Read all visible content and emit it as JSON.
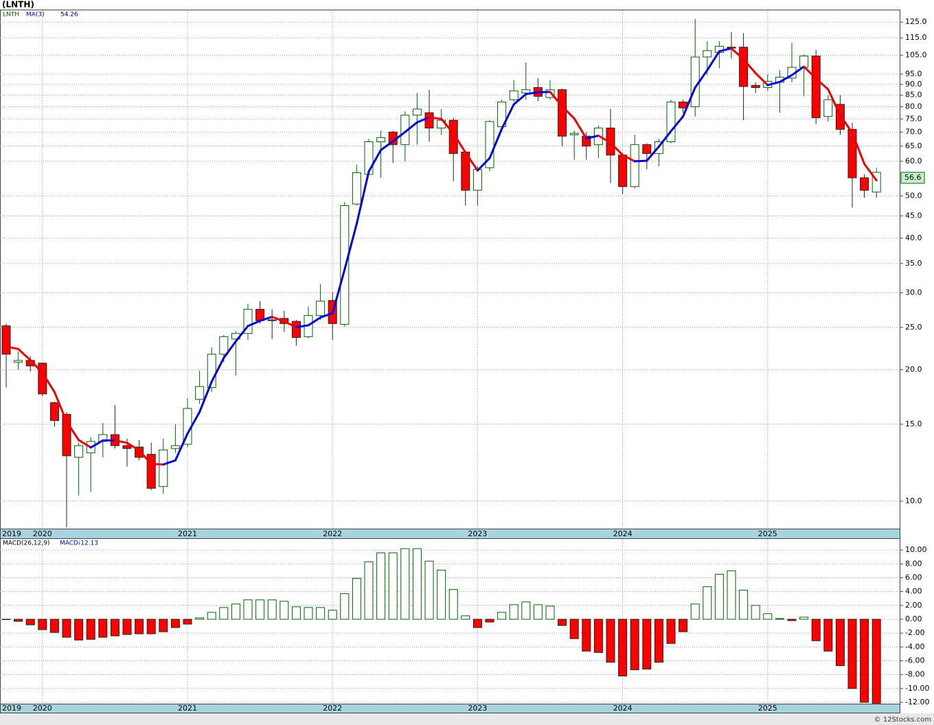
{
  "chart_data": [
    {
      "type": "candlestick",
      "title": "(LNTH)",
      "legend": [
        "LNTH",
        "MA(3)"
      ],
      "log_scale": true,
      "grid": true,
      "categories": [
        "2019",
        null,
        null,
        "2020",
        null,
        null,
        null,
        null,
        null,
        null,
        null,
        null,
        null,
        null,
        null,
        "2021",
        null,
        null,
        null,
        null,
        null,
        null,
        null,
        null,
        null,
        null,
        null,
        "2022",
        null,
        null,
        null,
        null,
        null,
        null,
        null,
        null,
        null,
        null,
        null,
        "2023",
        null,
        null,
        null,
        null,
        null,
        null,
        null,
        null,
        null,
        null,
        null,
        "2024",
        null,
        null,
        null,
        null,
        null,
        null,
        null,
        null,
        null,
        null,
        null,
        "2025",
        null,
        null,
        null,
        null,
        null,
        null,
        null,
        null,
        null
      ],
      "open": [
        25.2,
        20.8,
        21.0,
        20.7,
        16.8,
        15.8,
        12.6,
        12.9,
        13.7,
        14.2,
        13.4,
        13.3,
        12.8,
        10.8,
        13.2,
        13.5,
        17.1,
        18.2,
        21.7,
        23.5,
        24.2,
        27.5,
        26,
        26.2,
        25.8,
        23.8,
        26.6,
        28.8,
        25.4,
        47.9,
        56,
        66.5,
        70,
        65.5,
        76.5,
        77.5,
        71.5,
        74.5,
        63,
        51.5,
        58,
        72,
        83,
        86,
        88.5,
        84,
        87.5,
        69,
        68.5,
        65.5,
        71.5,
        62,
        52.5,
        65.5,
        62.5,
        66.5,
        82,
        80,
        104,
        106.5,
        109.5,
        109.5,
        89.5,
        88.5,
        91,
        93,
        98.5,
        104.5,
        76,
        81,
        71,
        55,
        51
      ],
      "high": [
        25.5,
        22,
        21.5,
        20.8,
        16.9,
        16,
        13.6,
        14,
        15.1,
        16.6,
        13.9,
        13.8,
        13.6,
        13.9,
        15,
        17.2,
        19.9,
        22.5,
        24,
        24.5,
        28.3,
        28.7,
        27.5,
        27.3,
        26,
        27.9,
        31.4,
        30.1,
        48.4,
        59,
        67.5,
        70.5,
        70.4,
        78,
        86,
        87.5,
        79,
        75.5,
        63.5,
        58.5,
        74.5,
        83,
        92,
        101,
        93,
        92,
        88,
        70.5,
        70,
        72.5,
        79,
        62.5,
        69,
        66,
        67.5,
        83,
        83,
        127,
        113,
        113,
        118.5,
        118,
        91,
        95,
        97,
        112,
        105.5,
        108,
        85,
        85,
        73.5,
        56,
        58
      ],
      "low": [
        18.2,
        20,
        19.8,
        17.4,
        14.8,
        8.7,
        10.3,
        10.5,
        12.6,
        13.2,
        12.0,
        12.4,
        10.6,
        10.4,
        12.9,
        13.3,
        16.7,
        17.8,
        20.8,
        19.4,
        23.4,
        25.5,
        23.5,
        24.4,
        22.7,
        23.6,
        26,
        23.4,
        25.1,
        47.5,
        56,
        55,
        59.5,
        60,
        65.5,
        66.5,
        69,
        54,
        47.5,
        47.5,
        57,
        70,
        82,
        83,
        82.5,
        83,
        65,
        60.5,
        60.5,
        61,
        53.5,
        50.5,
        52,
        57.5,
        58.5,
        66,
        77.5,
        76,
        94.5,
        98,
        103,
        74.5,
        86,
        87,
        77.5,
        91,
        84.5,
        73,
        74,
        69,
        47,
        49.5,
        49.5
      ],
      "close": [
        21.7,
        21.0,
        20.4,
        17.6,
        15.3,
        12.7,
        13.4,
        13.7,
        14.2,
        13.4,
        13.2,
        12.6,
        10.7,
        13.1,
        13.4,
        16.3,
        18.3,
        21.7,
        23.8,
        24.2,
        27.5,
        25.9,
        25.9,
        25.5,
        23.7,
        26.6,
        28.7,
        25.5,
        47.5,
        56.5,
        66.5,
        68,
        65.5,
        76.5,
        79,
        71.5,
        74.5,
        62.5,
        51.5,
        57.5,
        74,
        82,
        87,
        87.5,
        84.5,
        87.5,
        68.5,
        69.5,
        65,
        71.5,
        62,
        52.5,
        65.5,
        62.5,
        66.5,
        82,
        79.5,
        104,
        107.5,
        110,
        109,
        89,
        88.5,
        91.5,
        93.5,
        98.5,
        104.5,
        75.5,
        83,
        71,
        55,
        51.5,
        56.6
      ],
      "ma": {
        "name": "MA(3)",
        "values": [
          22.6,
          22.3,
          21.03,
          19.67,
          17.77,
          15.2,
          13.8,
          13.27,
          13.77,
          13.77,
          13.6,
          13.07,
          12.17,
          12.13,
          12.4,
          14.27,
          16.0,
          18.77,
          21.27,
          23.23,
          25.17,
          25.87,
          26.43,
          25.77,
          25.03,
          25.27,
          26.33,
          26.93,
          33.9,
          43.17,
          56.83,
          63.67,
          66.67,
          70.0,
          73.67,
          75.67,
          75.0,
          69.5,
          62.83,
          57.17,
          61.0,
          71.17,
          81.0,
          85.5,
          86.33,
          86.5,
          80.17,
          75.17,
          67.67,
          68.67,
          66.17,
          62.0,
          60.0,
          60.17,
          64.83,
          70.33,
          76.0,
          88.5,
          97.0,
          107.17,
          108.83,
          102.67,
          95.5,
          89.67,
          91.17,
          94.5,
          98.83,
          92.83,
          87.67,
          76.5,
          69.67,
          59.17,
          54.26
        ]
      },
      "up_color": "#006400",
      "down_color": "#ff0000",
      "ma_up_color": "#0000dd",
      "ma_down_color": "#ee0000",
      "ylim": [
        8.65,
        133
      ],
      "yticks": [
        {
          "value": 10,
          "label": "10.0"
        },
        {
          "value": 15,
          "label": "15.0"
        },
        {
          "value": 20,
          "label": "20.0"
        },
        {
          "value": 25,
          "label": "25.0"
        },
        {
          "value": 30,
          "label": "30.0"
        },
        {
          "value": 35,
          "label": "35.0"
        },
        {
          "value": 40,
          "label": "40.0"
        },
        {
          "value": 45,
          "label": "45.0"
        },
        {
          "value": 50,
          "label": "50.0"
        },
        {
          "value": 60,
          "label": "60.0"
        },
        {
          "value": 65,
          "label": "65.0"
        },
        {
          "value": 70,
          "label": "70.0"
        },
        {
          "value": 75,
          "label": "75.0"
        },
        {
          "value": 80,
          "label": "80.0"
        },
        {
          "value": 85,
          "label": "85.0"
        },
        {
          "value": 90,
          "label": "90.0"
        },
        {
          "value": 95,
          "label": "95.0"
        },
        {
          "value": 105,
          "label": "105.0"
        },
        {
          "value": 115,
          "label": "115.0"
        },
        {
          "value": 125,
          "label": "125.0"
        }
      ]
    },
    {
      "type": "bar",
      "title": "MACD(26,12,9)",
      "legend": "MACD:",
      "grid": true,
      "categories": [
        "2019",
        null,
        null,
        "2020",
        null,
        null,
        null,
        null,
        null,
        null,
        null,
        null,
        null,
        null,
        null,
        "2021",
        null,
        null,
        null,
        null,
        null,
        null,
        null,
        null,
        null,
        null,
        null,
        "2022",
        null,
        null,
        null,
        null,
        null,
        null,
        null,
        null,
        null,
        null,
        null,
        "2023",
        null,
        null,
        null,
        null,
        null,
        null,
        null,
        null,
        null,
        null,
        null,
        "2024",
        null,
        null,
        null,
        null,
        null,
        null,
        null,
        null,
        null,
        null,
        null,
        "2025",
        null,
        null,
        null,
        null,
        null,
        null,
        null,
        null,
        null
      ],
      "values": [
        -0.05,
        -0.3,
        -0.8,
        -1.5,
        -1.9,
        -2.6,
        -3.0,
        -2.9,
        -2.6,
        -2.4,
        -2.2,
        -2.1,
        -2.1,
        -1.8,
        -1.2,
        -0.7,
        0.2,
        1.0,
        1.7,
        2.2,
        2.8,
        2.8,
        2.8,
        2.6,
        1.8,
        1.7,
        1.7,
        1.3,
        3.7,
        5.9,
        8.3,
        9.6,
        9.6,
        10.2,
        10.2,
        8.4,
        7.1,
        4.3,
        0.5,
        -1.2,
        -0.4,
        1.0,
        2.1,
        2.5,
        2.1,
        1.9,
        -0.9,
        -2.8,
        -4.6,
        -4.8,
        -6.2,
        -8.2,
        -7.3,
        -7.2,
        -6.2,
        -3.5,
        -1.8,
        2.2,
        4.7,
        6.5,
        7.0,
        4.2,
        2.0,
        0.8,
        0.1,
        -0.2,
        0.3,
        -3.1,
        -4.6,
        -6.7,
        -10.0,
        -12.0,
        -12.13
      ],
      "up_color": "#006400",
      "down_color": "#ff0000",
      "ylim": [
        -12.2,
        11.6
      ],
      "yticks": [
        {
          "value": -12,
          "label": "-12.00"
        },
        {
          "value": -10,
          "label": "-10.00"
        },
        {
          "value": -8,
          "label": "-8.00"
        },
        {
          "value": -6,
          "label": "-6.00"
        },
        {
          "value": -4,
          "label": "-4.00"
        },
        {
          "value": -2,
          "label": "-2.00"
        },
        {
          "value": 0,
          "label": "0.00"
        },
        {
          "value": 2,
          "label": "2.00"
        },
        {
          "value": 4,
          "label": "4.00"
        },
        {
          "value": 6,
          "label": "6.00"
        },
        {
          "value": 8,
          "label": "8.00"
        },
        {
          "value": 10,
          "label": "10.00"
        }
      ]
    }
  ],
  "footer": "© 12Stocks.com"
}
